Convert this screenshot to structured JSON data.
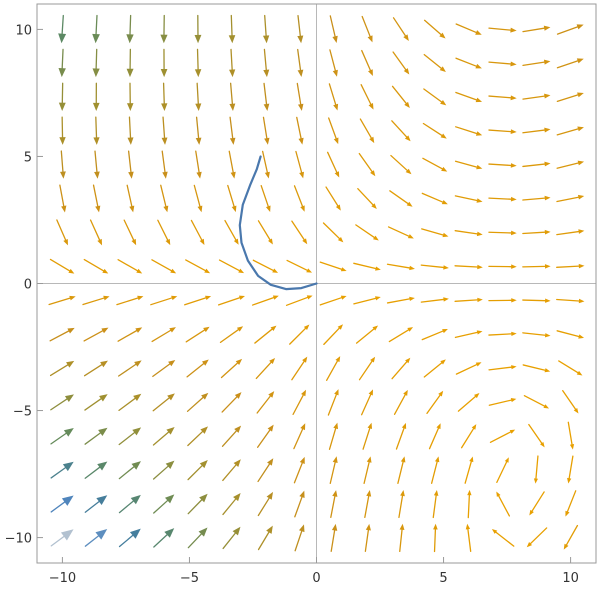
{
  "chart_data": {
    "type": "vector_field",
    "xlim": [
      -11,
      11
    ],
    "ylim": [
      -11,
      11
    ],
    "x_ticks": [
      -10,
      -5,
      0,
      5,
      10
    ],
    "y_ticks": [
      -10,
      -5,
      0,
      5,
      10
    ],
    "x_tick_labels": [
      "−10",
      "−5",
      "0",
      "5",
      "10"
    ],
    "y_tick_labels": [
      "−10",
      "−5",
      "0",
      "5",
      "10"
    ],
    "grid": false,
    "grid_x": {
      "start": -10,
      "end": 10,
      "count": 16
    },
    "grid_y": {
      "start": -10,
      "end": 10,
      "count": 16
    },
    "colormap": [
      "#e8a000",
      "#c98f1a",
      "#a09030",
      "#5e8a60",
      "#3a78b8",
      "#d8d8d8"
    ],
    "trajectory": {
      "color": "#4a78ad",
      "points": [
        [
          0,
          0
        ],
        [
          -0.6,
          -0.18
        ],
        [
          -1.2,
          -0.22
        ],
        [
          -1.8,
          -0.05
        ],
        [
          -2.3,
          0.3
        ],
        [
          -2.7,
          0.9
        ],
        [
          -2.95,
          1.6
        ],
        [
          -3.02,
          2.3
        ],
        [
          -2.9,
          3.1
        ],
        [
          -2.6,
          3.9
        ],
        [
          -2.35,
          4.5
        ],
        [
          -2.2,
          5.0
        ]
      ]
    }
  }
}
